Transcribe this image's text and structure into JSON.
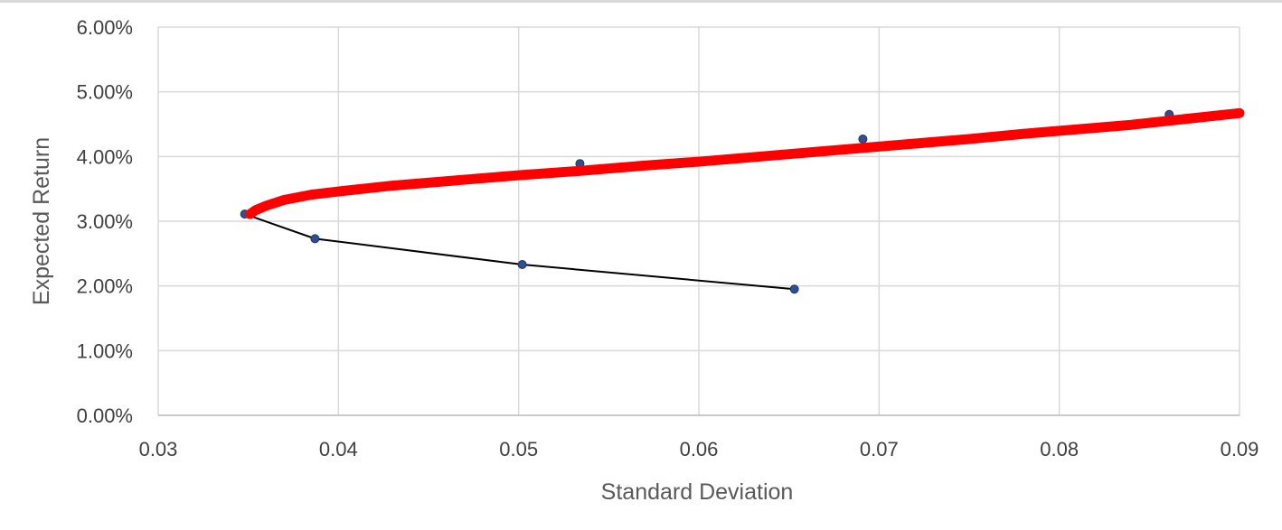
{
  "chart_data": {
    "type": "scatter",
    "title": "",
    "xlabel": "Standard Deviation",
    "ylabel": "Expected Return",
    "xlim": [
      0.03,
      0.09
    ],
    "ylim": [
      0,
      0.06
    ],
    "x_ticks": [
      0.03,
      0.04,
      0.05,
      0.06,
      0.07,
      0.08,
      0.09
    ],
    "x_tick_labels": [
      "0.03",
      "0.04",
      "0.05",
      "0.06",
      "0.07",
      "0.08",
      "0.09"
    ],
    "y_ticks": [
      0,
      0.01,
      0.02,
      0.03,
      0.04,
      0.05,
      0.06
    ],
    "y_tick_labels": [
      "0.00%",
      "1.00%",
      "2.00%",
      "3.00%",
      "4.00%",
      "5.00%",
      "6.00%"
    ],
    "grid": true,
    "legend": "none",
    "series": [
      {
        "style": "line-markers",
        "color": "#000000",
        "marker_color": "#2f4f8f",
        "x": [
          0.0348,
          0.0387,
          0.0502,
          0.0653
        ],
        "y": [
          0.0311,
          0.0273,
          0.0233,
          0.0195
        ]
      },
      {
        "style": "thick-line",
        "color": "#ff0000",
        "x": [
          0.0351,
          0.0354,
          0.036,
          0.037,
          0.0385,
          0.04,
          0.043,
          0.0465,
          0.05,
          0.0535,
          0.057,
          0.06,
          0.063,
          0.066,
          0.069,
          0.072,
          0.075,
          0.078,
          0.081,
          0.084,
          0.087,
          0.09
        ],
        "y": [
          0.0311,
          0.0317,
          0.0324,
          0.0333,
          0.0341,
          0.0346,
          0.0355,
          0.0363,
          0.0371,
          0.0378,
          0.0386,
          0.0392,
          0.0399,
          0.0406,
          0.0413,
          0.042,
          0.0427,
          0.0435,
          0.0442,
          0.0449,
          0.0458,
          0.0467
        ]
      },
      {
        "style": "markers",
        "color": "#2f4f8f",
        "x": [
          0.0534,
          0.0691,
          0.0861
        ],
        "y": [
          0.0389,
          0.0427,
          0.0465
        ]
      }
    ]
  }
}
